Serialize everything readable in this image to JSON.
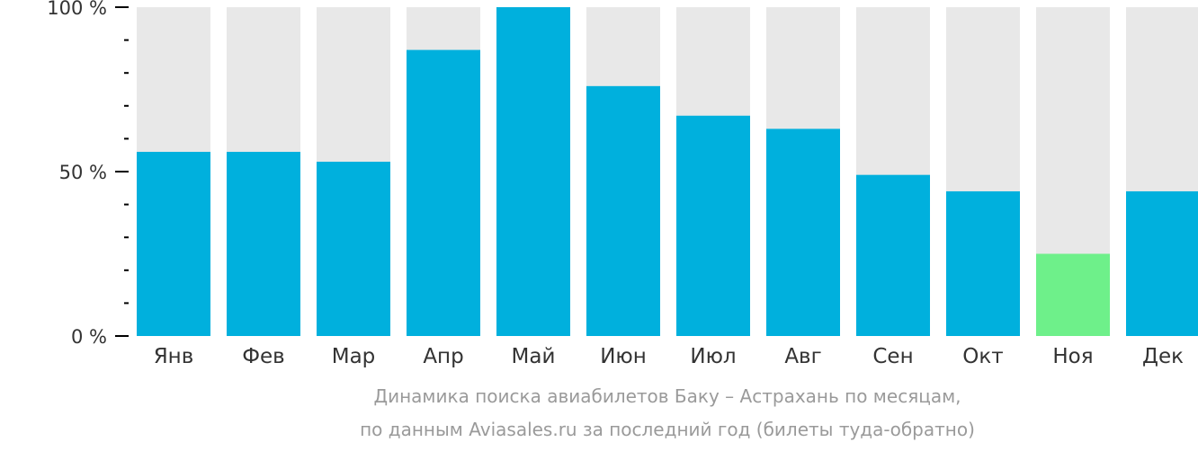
{
  "chart_data": {
    "type": "bar",
    "categories": [
      "Янв",
      "Фев",
      "Мар",
      "Апр",
      "Май",
      "Июн",
      "Июл",
      "Авг",
      "Сен",
      "Окт",
      "Ноя",
      "Дек"
    ],
    "values": [
      56,
      56,
      53,
      87,
      100,
      76,
      67,
      63,
      49,
      44,
      25,
      44
    ],
    "ylim": [
      0,
      100
    ],
    "y_ticks": [
      {
        "value": 0,
        "label": "0 %"
      },
      {
        "value": 50,
        "label": "50 %"
      },
      {
        "value": 100,
        "label": "100 %"
      }
    ],
    "minor_tick_step": 10,
    "highlight_index": 10,
    "colors": {
      "bar": "#00b0dd",
      "highlight": "#6ef08a",
      "track": "#e8e8e8",
      "axis": "#000000",
      "text": "#333333"
    },
    "caption": [
      "Динамика поиска авиабилетов Баку – Астрахань по месяцам,",
      "по данным Aviasales.ru за последний год (билеты туда-обратно)"
    ]
  }
}
